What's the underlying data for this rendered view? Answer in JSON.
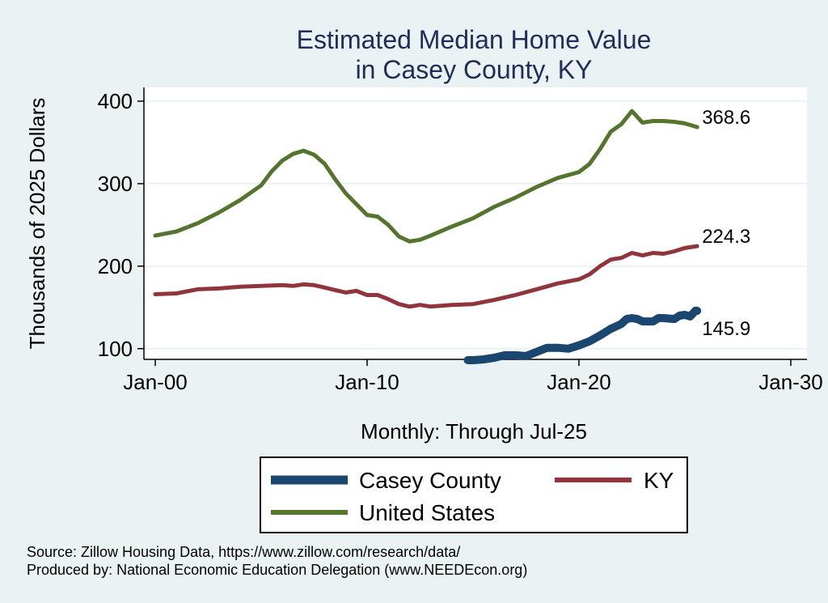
{
  "chart_data": {
    "type": "line",
    "title_lines": [
      "Estimated Median Home Value",
      "in Casey County, KY"
    ],
    "xlabel": "Monthly: Through Jul-25",
    "ylabel": "Thousands of 2025 Dollars",
    "xlim": [
      2000.0,
      2030.0
    ],
    "ylim": [
      87,
      400
    ],
    "x_ticks": [
      {
        "value": 2000,
        "label": "Jan-00"
      },
      {
        "value": 2010,
        "label": "Jan-10"
      },
      {
        "value": 2020,
        "label": "Jan-20"
      },
      {
        "value": 2030,
        "label": "Jan-30"
      }
    ],
    "y_ticks": [
      {
        "value": 100,
        "label": "100"
      },
      {
        "value": 200,
        "label": "200"
      },
      {
        "value": 300,
        "label": "300"
      },
      {
        "value": 400,
        "label": "400"
      }
    ],
    "grid": true,
    "legend_position": "bottom",
    "series": [
      {
        "name": "Casey County",
        "color": "#1a476f",
        "end_label": "145.9",
        "points": [
          [
            2014.75,
            86
          ],
          [
            2015.0,
            86
          ],
          [
            2015.5,
            87
          ],
          [
            2016.0,
            89
          ],
          [
            2016.5,
            92
          ],
          [
            2017.0,
            92
          ],
          [
            2017.5,
            91
          ],
          [
            2018.0,
            96
          ],
          [
            2018.5,
            101
          ],
          [
            2019.0,
            101
          ],
          [
            2019.5,
            100
          ],
          [
            2020.0,
            104
          ],
          [
            2020.5,
            109
          ],
          [
            2021.0,
            116
          ],
          [
            2021.5,
            124
          ],
          [
            2022.0,
            130
          ],
          [
            2022.25,
            136
          ],
          [
            2022.5,
            137
          ],
          [
            2022.75,
            136
          ],
          [
            2023.0,
            133
          ],
          [
            2023.5,
            133
          ],
          [
            2023.75,
            137
          ],
          [
            2024.0,
            137
          ],
          [
            2024.5,
            136
          ],
          [
            2024.75,
            140
          ],
          [
            2025.0,
            141
          ],
          [
            2025.25,
            139
          ],
          [
            2025.5,
            146
          ],
          [
            2025.58,
            145.9
          ]
        ]
      },
      {
        "name": "KY",
        "color": "#90353b",
        "end_label": "224.3",
        "points": [
          [
            2000.0,
            166
          ],
          [
            2001.0,
            167
          ],
          [
            2002.0,
            172
          ],
          [
            2003.0,
            173
          ],
          [
            2004.0,
            175
          ],
          [
            2005.0,
            176
          ],
          [
            2006.0,
            177
          ],
          [
            2006.5,
            176
          ],
          [
            2007.0,
            178
          ],
          [
            2007.5,
            177
          ],
          [
            2008.0,
            174
          ],
          [
            2008.5,
            171
          ],
          [
            2009.0,
            168
          ],
          [
            2009.5,
            170
          ],
          [
            2010.0,
            165
          ],
          [
            2010.5,
            165
          ],
          [
            2011.0,
            160
          ],
          [
            2011.5,
            154
          ],
          [
            2012.0,
            151
          ],
          [
            2012.5,
            153
          ],
          [
            2013.0,
            151
          ],
          [
            2014.0,
            153
          ],
          [
            2015.0,
            154
          ],
          [
            2016.0,
            159
          ],
          [
            2017.0,
            165
          ],
          [
            2018.0,
            172
          ],
          [
            2019.0,
            179
          ],
          [
            2020.0,
            184
          ],
          [
            2020.5,
            190
          ],
          [
            2021.0,
            200
          ],
          [
            2021.5,
            208
          ],
          [
            2022.0,
            210
          ],
          [
            2022.5,
            216
          ],
          [
            2023.0,
            213
          ],
          [
            2023.5,
            216
          ],
          [
            2024.0,
            215
          ],
          [
            2024.5,
            218
          ],
          [
            2025.0,
            222
          ],
          [
            2025.58,
            224.3
          ]
        ]
      },
      {
        "name": "United States",
        "color": "#55752f",
        "end_label": "368.6",
        "points": [
          [
            2000.0,
            237
          ],
          [
            2001.0,
            242
          ],
          [
            2002.0,
            252
          ],
          [
            2003.0,
            265
          ],
          [
            2004.0,
            280
          ],
          [
            2005.0,
            298
          ],
          [
            2005.5,
            315
          ],
          [
            2006.0,
            328
          ],
          [
            2006.5,
            336
          ],
          [
            2007.0,
            340
          ],
          [
            2007.5,
            335
          ],
          [
            2008.0,
            324
          ],
          [
            2008.5,
            305
          ],
          [
            2009.0,
            288
          ],
          [
            2009.5,
            275
          ],
          [
            2010.0,
            262
          ],
          [
            2010.5,
            260
          ],
          [
            2011.0,
            250
          ],
          [
            2011.5,
            236
          ],
          [
            2012.0,
            230
          ],
          [
            2012.5,
            232
          ],
          [
            2013.0,
            237
          ],
          [
            2014.0,
            248
          ],
          [
            2015.0,
            258
          ],
          [
            2016.0,
            272
          ],
          [
            2017.0,
            283
          ],
          [
            2018.0,
            296
          ],
          [
            2019.0,
            307
          ],
          [
            2020.0,
            314
          ],
          [
            2020.5,
            324
          ],
          [
            2021.0,
            342
          ],
          [
            2021.5,
            363
          ],
          [
            2022.0,
            372
          ],
          [
            2022.5,
            388
          ],
          [
            2023.0,
            374
          ],
          [
            2023.5,
            376
          ],
          [
            2024.0,
            376
          ],
          [
            2024.5,
            375
          ],
          [
            2025.0,
            373
          ],
          [
            2025.58,
            368.6
          ]
        ]
      }
    ]
  },
  "source_lines": [
    "Source: Zillow Housing Data, https://www.zillow.com/research/data/",
    "Produced by: National Economic Education Delegation (www.NEEDEcon.org)"
  ]
}
